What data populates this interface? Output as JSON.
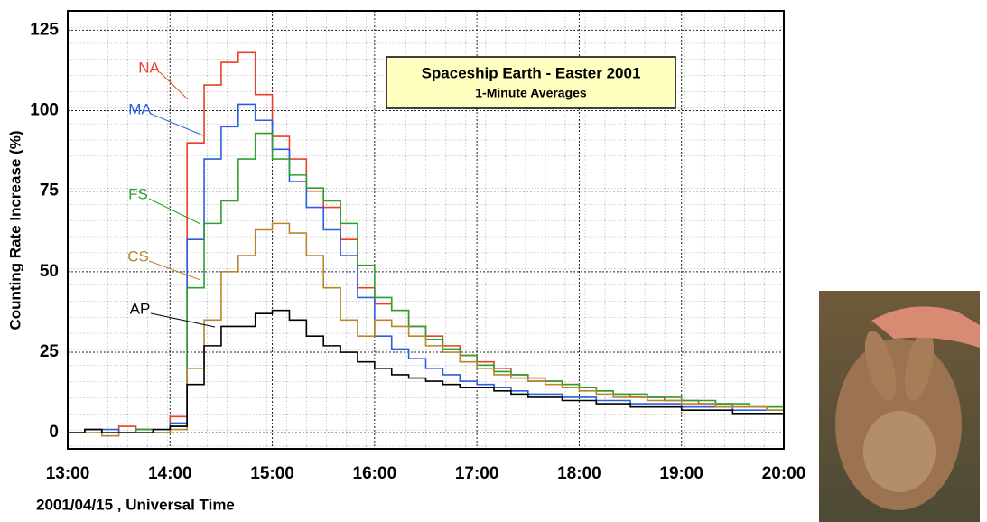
{
  "chart_data": {
    "type": "line",
    "title": "Spaceship Earth - Easter 2001",
    "subtitle": "1-Minute Averages",
    "y_label": "Counting Rate Increase (%)",
    "x_label": "2001/04/15 , Universal Time",
    "x": [
      "13:00",
      "13:10",
      "13:20",
      "13:30",
      "13:40",
      "13:50",
      "14:00",
      "14:10",
      "14:20",
      "14:30",
      "14:40",
      "14:50",
      "15:00",
      "15:10",
      "15:20",
      "15:30",
      "15:40",
      "15:50",
      "16:00",
      "16:10",
      "16:20",
      "16:30",
      "16:40",
      "16:50",
      "17:00",
      "17:10",
      "17:20",
      "17:30",
      "17:40",
      "17:50",
      "18:00",
      "18:10",
      "18:20",
      "18:30",
      "18:40",
      "18:50",
      "19:00",
      "19:10",
      "19:20",
      "19:30",
      "19:40",
      "19:50",
      "20:00"
    ],
    "series": [
      {
        "name": "NA",
        "color": "#e8402a",
        "values": [
          0,
          1,
          0,
          2,
          1,
          0,
          5,
          90,
          108,
          115,
          118,
          105,
          92,
          85,
          75,
          70,
          60,
          45,
          40,
          38,
          33,
          30,
          27,
          24,
          22,
          20,
          18,
          17,
          16,
          15,
          14,
          13,
          12,
          11,
          11,
          10,
          10,
          9,
          9,
          8,
          8,
          8,
          7
        ]
      },
      {
        "name": "MA",
        "color": "#2a5fe0",
        "values": [
          0,
          0,
          1,
          0,
          1,
          0,
          3,
          60,
          85,
          95,
          102,
          97,
          88,
          78,
          70,
          63,
          55,
          42,
          30,
          26,
          23,
          20,
          18,
          16,
          15,
          14,
          13,
          12,
          12,
          11,
          11,
          10,
          10,
          9,
          9,
          9,
          8,
          8,
          8,
          7,
          7,
          7,
          6
        ]
      },
      {
        "name": "FS",
        "color": "#2ca02c",
        "values": [
          0,
          1,
          0,
          0,
          1,
          0,
          2,
          45,
          65,
          72,
          85,
          93,
          85,
          80,
          76,
          72,
          65,
          52,
          42,
          38,
          33,
          29,
          26,
          24,
          21,
          19,
          18,
          16,
          16,
          15,
          14,
          13,
          12,
          12,
          11,
          11,
          10,
          10,
          9,
          9,
          8,
          8,
          8
        ]
      },
      {
        "name": "CS",
        "color": "#b8862b",
        "values": [
          0,
          0,
          -1,
          0,
          0,
          0,
          1,
          20,
          35,
          50,
          55,
          63,
          65,
          62,
          55,
          45,
          35,
          30,
          35,
          33,
          30,
          27,
          25,
          22,
          20,
          18,
          17,
          16,
          15,
          14,
          13,
          12,
          11,
          11,
          10,
          10,
          9,
          9,
          8,
          8,
          8,
          7,
          6
        ]
      },
      {
        "name": "AP",
        "color": "#000000",
        "values": [
          0,
          1,
          0,
          0,
          0,
          1,
          2,
          15,
          27,
          33,
          33,
          37,
          38,
          35,
          30,
          27,
          25,
          22,
          20,
          18,
          17,
          16,
          15,
          14,
          14,
          13,
          12,
          11,
          11,
          10,
          10,
          9,
          9,
          8,
          8,
          8,
          7,
          7,
          7,
          6,
          6,
          6,
          5
        ]
      }
    ],
    "xlim": [
      "13:00",
      "20:00"
    ],
    "xticks": [
      "13:00",
      "14:00",
      "15:00",
      "16:00",
      "17:00",
      "18:00",
      "19:00",
      "20:00"
    ],
    "ylim": [
      -5,
      131
    ],
    "yticks": [
      0,
      25,
      50,
      75,
      100,
      125
    ],
    "grid": true
  }
}
